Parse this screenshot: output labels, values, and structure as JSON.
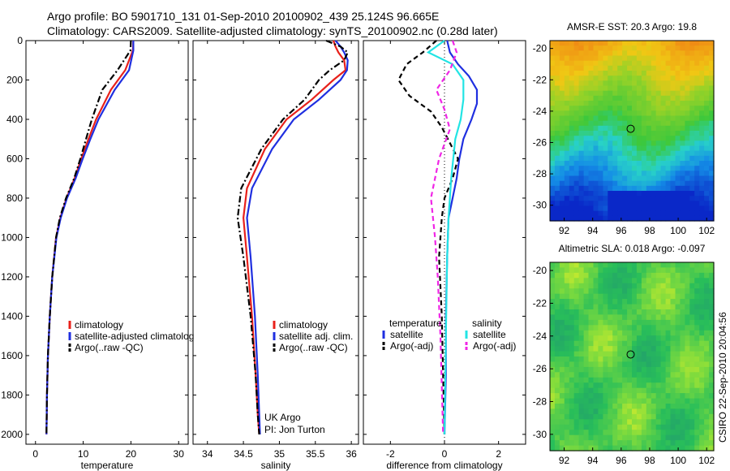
{
  "header": {
    "line1": "Argo profile: BO 5901710_131 01-Sep-2010 20100902_439 25.124S 96.665E",
    "line2": "Climatology: CARS2009. Satellite-adjusted climatology: synTS_20100902.nc (0.28d later)"
  },
  "colors": {
    "climatology": "#e8211b",
    "satellite": "#1f2fe0",
    "argo": "#000000",
    "sal_satellite": "#22e4e4",
    "sal_argo": "#f026e6"
  },
  "chart_data": [
    {
      "type": "line",
      "xlabel": "temperature",
      "xlim": [
        -2,
        32
      ],
      "ylim": [
        0,
        2050
      ],
      "y_reversed": true,
      "xticks": [
        0,
        10,
        20,
        30
      ],
      "yticks": [
        0,
        200,
        400,
        600,
        800,
        1000,
        1200,
        1400,
        1600,
        1800,
        2000
      ],
      "legend": [
        "climatology",
        "satellite-adjusted climatolog",
        "Argo(..raw -QC)"
      ],
      "series": [
        {
          "name": "climatology",
          "style": "solid",
          "color": "#e8211b",
          "x": [
            20.5,
            20.4,
            18.8,
            15.8,
            12.7,
            11.1,
            9.6,
            8.2,
            6.5,
            5.2,
            4.3,
            3.5,
            3.0,
            2.6,
            2.4,
            2.3
          ],
          "y": [
            0,
            50,
            150,
            250,
            400,
            500,
            600,
            700,
            800,
            900,
            1000,
            1200,
            1400,
            1600,
            1800,
            2000
          ]
        },
        {
          "name": "satellite-adjusted climatolog",
          "style": "solid",
          "color": "#1f2fe0",
          "x": [
            20.5,
            20.5,
            19.6,
            16.6,
            13.2,
            11.5,
            9.9,
            8.4,
            6.6,
            5.3,
            4.4,
            3.5,
            3.0,
            2.6,
            2.4,
            2.3
          ],
          "y": [
            0,
            50,
            150,
            250,
            400,
            500,
            600,
            700,
            800,
            900,
            1000,
            1200,
            1400,
            1600,
            1800,
            2000
          ]
        },
        {
          "name": "Argo(..raw -QC)",
          "style": "dashdot",
          "color": "#000000",
          "x": [
            20.0,
            19.9,
            17.2,
            14.0,
            11.8,
            10.6,
            9.4,
            8.1,
            6.4,
            5.1,
            4.3,
            3.5,
            3.0,
            2.6,
            2.4,
            2.3
          ],
          "y": [
            0,
            50,
            150,
            250,
            400,
            500,
            600,
            700,
            800,
            900,
            1000,
            1200,
            1400,
            1600,
            1800,
            2000
          ]
        }
      ],
      "annotations": []
    },
    {
      "type": "line",
      "xlabel": "salinity",
      "xlim": [
        33.8,
        36.1
      ],
      "ylim": [
        0,
        2050
      ],
      "y_reversed": true,
      "xticks": [
        34,
        34.5,
        35,
        35.5,
        36
      ],
      "yticks": [
        0,
        200,
        400,
        600,
        800,
        1000,
        1200,
        1400,
        1600,
        1800,
        2000
      ],
      "legend": [
        "climatology",
        "satellite adj. clim.",
        "Argo(..raw -QC)"
      ],
      "series": [
        {
          "name": "climatology",
          "style": "solid",
          "color": "#e8211b",
          "x": [
            35.75,
            35.78,
            35.82,
            35.9,
            35.92,
            35.75,
            35.45,
            35.1,
            34.8,
            34.55,
            34.5,
            34.55,
            34.62,
            34.67,
            34.7,
            34.72
          ],
          "y": [
            0,
            30,
            60,
            100,
            150,
            200,
            300,
            400,
            550,
            750,
            900,
            1100,
            1400,
            1700,
            1900,
            2000
          ]
        },
        {
          "name": "satellite adj. clim.",
          "style": "solid",
          "color": "#1f2fe0",
          "x": [
            35.78,
            35.85,
            35.9,
            35.95,
            35.94,
            35.85,
            35.55,
            35.2,
            34.9,
            34.62,
            34.55,
            34.6,
            34.66,
            34.7,
            34.72,
            34.73
          ],
          "y": [
            0,
            30,
            60,
            100,
            150,
            200,
            300,
            400,
            550,
            750,
            900,
            1100,
            1400,
            1700,
            1900,
            2000
          ]
        },
        {
          "name": "Argo(..raw -QC)",
          "style": "dashdot",
          "color": "#000000",
          "x": [
            35.65,
            35.85,
            35.95,
            35.9,
            35.7,
            35.55,
            35.35,
            35.05,
            34.75,
            34.47,
            34.42,
            34.5,
            34.6,
            34.67,
            34.7,
            34.72
          ],
          "y": [
            0,
            30,
            60,
            100,
            150,
            200,
            300,
            400,
            550,
            750,
            900,
            1100,
            1400,
            1700,
            1900,
            2000
          ]
        }
      ],
      "annotations": [
        "UK Argo",
        "PI: Jon Turton"
      ]
    },
    {
      "type": "line",
      "xlabel": "difference from climatology",
      "xlim": [
        -3,
        3
      ],
      "ylim": [
        0,
        2050
      ],
      "y_reversed": true,
      "xticks": [
        -2,
        0,
        2
      ],
      "yticks": [
        0,
        200,
        400,
        600,
        800,
        1000,
        1200,
        1400,
        1600,
        1800,
        2000
      ],
      "legend_groups": [
        {
          "title": "temperature",
          "items": [
            "satellite",
            "Argo(-adj)"
          ]
        },
        {
          "title": "salinity",
          "items": [
            "satellite",
            "Argo(-adj)"
          ]
        }
      ],
      "series": [
        {
          "name": "temperature satellite",
          "style": "solid",
          "color": "#1f2fe0",
          "x": [
            0.1,
            0.2,
            0.5,
            0.9,
            1.2,
            1.2,
            1.0,
            0.7,
            0.55,
            0.45,
            0.3,
            0.15,
            0.1,
            0.05,
            0.05,
            0.0
          ],
          "y": [
            0,
            60,
            120,
            180,
            250,
            320,
            400,
            500,
            600,
            700,
            800,
            900,
            1100,
            1400,
            1700,
            2000
          ]
        },
        {
          "name": "temperature Argo(-adj)",
          "style": "dashed",
          "color": "#000000",
          "x": [
            -0.3,
            -0.8,
            -1.4,
            -1.7,
            -1.3,
            -0.5,
            -0.1,
            0.2,
            0.5,
            0.3,
            0.0,
            -0.1,
            -0.2,
            -0.1,
            -0.05,
            0.0
          ],
          "y": [
            0,
            60,
            120,
            200,
            280,
            360,
            440,
            520,
            600,
            700,
            800,
            900,
            1100,
            1400,
            1700,
            2000
          ]
        },
        {
          "name": "salinity satellite",
          "style": "solid",
          "color": "#22e4e4",
          "x": [
            0.0,
            -0.6,
            0.3,
            0.7,
            0.7,
            0.6,
            0.4,
            0.25,
            0.15,
            0.1,
            0.05,
            0.0
          ],
          "y": [
            0,
            60,
            120,
            200,
            300,
            400,
            500,
            700,
            900,
            1100,
            1500,
            2000
          ]
        },
        {
          "name": "salinity Argo(-adj)",
          "style": "dashed",
          "color": "#f026e6",
          "x": [
            0.3,
            0.45,
            0.2,
            -0.3,
            0.0,
            0.2,
            -0.2,
            -0.5,
            -0.35,
            -0.25,
            -0.15,
            -0.05
          ],
          "y": [
            0,
            60,
            150,
            250,
            350,
            450,
            600,
            800,
            1000,
            1200,
            1500,
            2000
          ]
        }
      ]
    },
    {
      "type": "heatmap",
      "title": "AMSR-E SST: 20.3 Argo: 19.8",
      "xlim": [
        91,
        102.5
      ],
      "ylim": [
        -31,
        -19.5
      ],
      "xticks": [
        92,
        94,
        96,
        98,
        100,
        102
      ],
      "yticks": [
        -20,
        -22,
        -24,
        -26,
        -28,
        -30
      ],
      "marker": {
        "lon": 96.665,
        "lat": -25.124
      }
    },
    {
      "type": "heatmap",
      "title": "Altimetric SLA: 0.018 Argo: -0.097",
      "xlim": [
        91,
        102.5
      ],
      "ylim": [
        -31,
        -19.5
      ],
      "xticks": [
        92,
        94,
        96,
        98,
        100,
        102
      ],
      "yticks": [
        -20,
        -22,
        -24,
        -26,
        -28,
        -30
      ],
      "marker": {
        "lon": 96.665,
        "lat": -25.124
      }
    }
  ],
  "footer": {
    "credit": "CSIRO 22-Sep-2010 20:04:56"
  }
}
